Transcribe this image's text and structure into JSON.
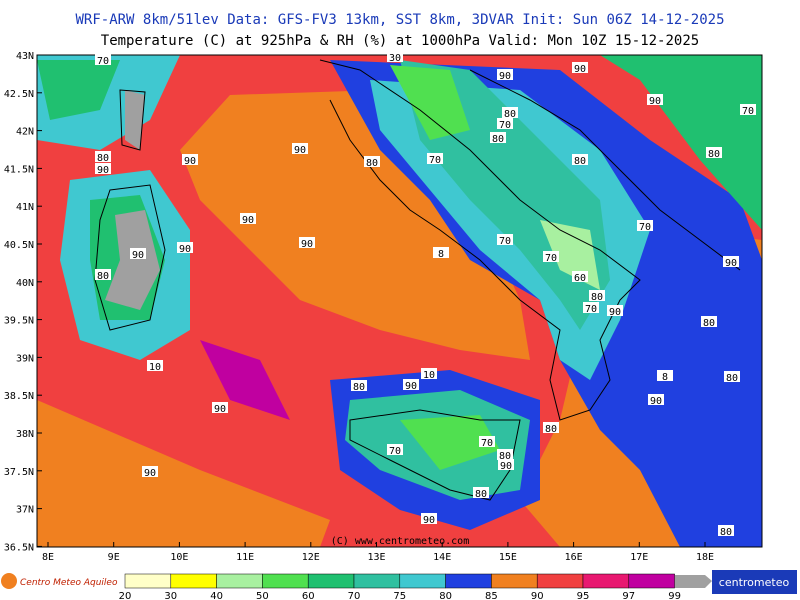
{
  "header": {
    "line1": "WRF-ARW 8km/51lev  Data: GFS-FV3 13km, SST 8km, 3DVAR  Init: Sun 06Z 14-12-2025",
    "line2": "Temperature (C) at 925hPa & RH (%) at 1000hPa  Valid: Mon 10Z 15-12-2025"
  },
  "map": {
    "lat_labels": [
      "43N",
      "42.5N",
      "42N",
      "41.5N",
      "41N",
      "40.5N",
      "40N",
      "39.5N",
      "39N",
      "38.5N",
      "38N",
      "37.5N",
      "37N",
      "36.5N"
    ],
    "lon_labels": [
      "8E",
      "9E",
      "10E",
      "11E",
      "12E",
      "13E",
      "14E",
      "15E",
      "16E",
      "17E",
      "18E"
    ],
    "watermark": "(C) www.centrometeo.com",
    "contour_labels": [
      "70",
      "90",
      "90",
      "90",
      "70",
      "80",
      "70",
      "80",
      "80",
      "90",
      "90",
      "90",
      "80",
      "70",
      "80",
      "80",
      "90",
      "90",
      "90",
      "90",
      "8",
      "70",
      "70",
      "70",
      "90",
      "80",
      "60",
      "80",
      "70",
      "90",
      "80",
      "10",
      "10",
      "80",
      "90",
      "8",
      "80",
      "90",
      "90",
      "80",
      "70",
      "70",
      "80",
      "90",
      "90",
      "80",
      "90",
      "80",
      "30"
    ]
  },
  "legend": {
    "levels": [
      "20",
      "30",
      "40",
      "50",
      "60",
      "70",
      "75",
      "80",
      "85",
      "90",
      "95",
      "97",
      "99"
    ],
    "colors": [
      "#ffffc8",
      "#ffff00",
      "#a8f0a0",
      "#50e050",
      "#20c070",
      "#30c0a0",
      "#40c8d0",
      "#2040e0",
      "#f08020",
      "#f04040",
      "#e81870",
      "#c000a0"
    ]
  },
  "footer": {
    "logo_left": "Centro Meteo Aquileo",
    "logo_right": "centrometeo"
  }
}
